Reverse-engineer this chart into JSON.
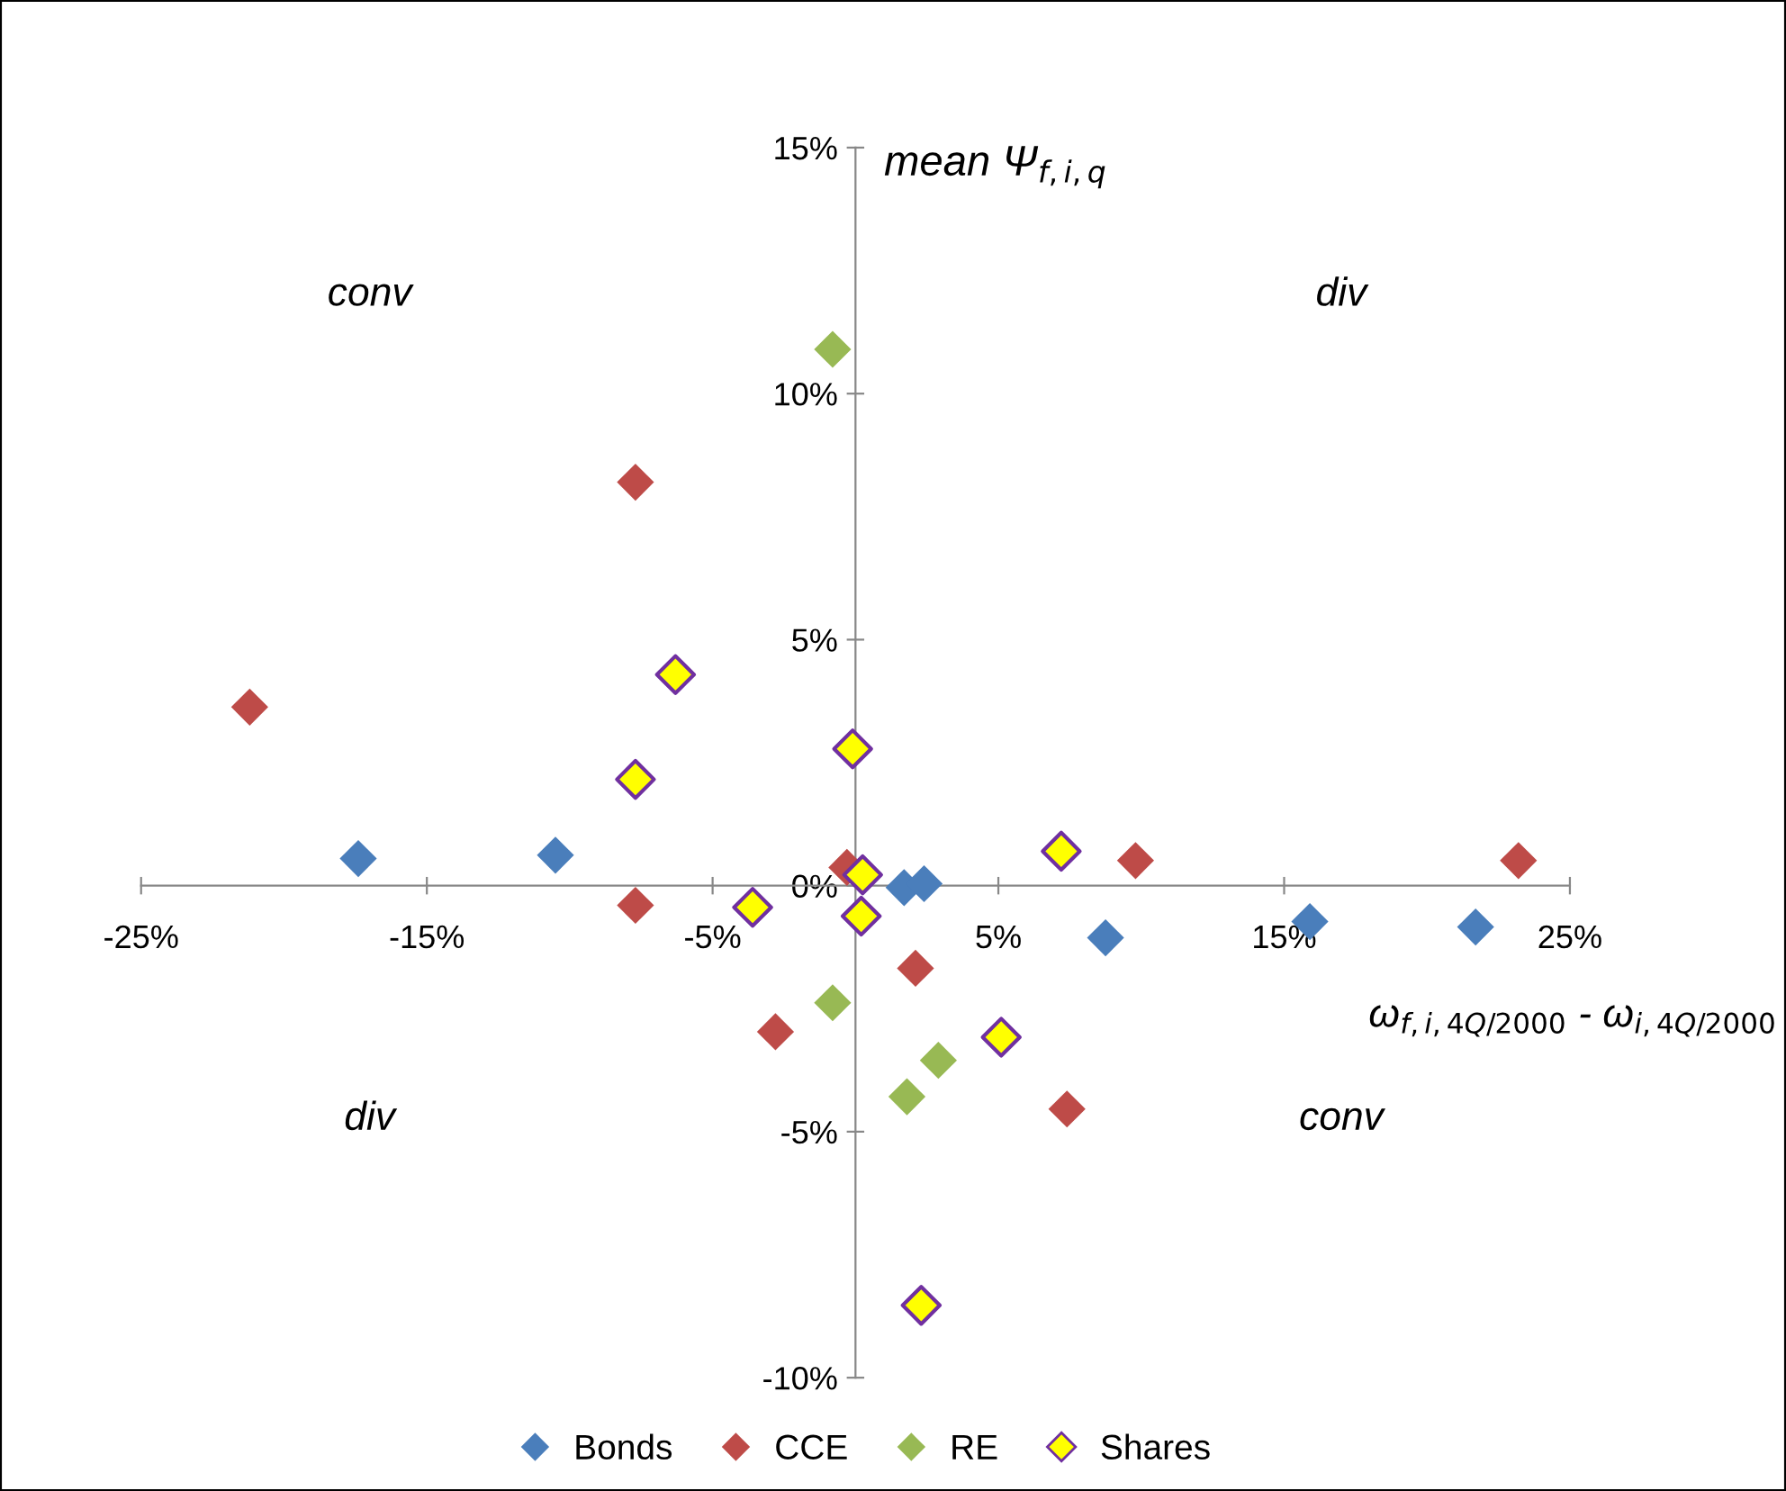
{
  "chart_data": {
    "type": "scatter",
    "xlabel": "ω$_{f,i,4Q/2000}$ - ω$_{i,4Q/2000}$",
    "ylabel": "mean Ψ$_{f,i,q}$",
    "annotations": [
      "conv",
      "div",
      "div",
      "conv"
    ],
    "series": [
      {
        "name": "Bonds",
        "color": "#4a7ebb",
        "x": [
          -17.4,
          -10.5,
          0.2,
          1.7,
          2.4,
          8.75,
          15.9,
          21.7
        ],
        "values": [
          0.55,
          0.62,
          null,
          -0.04,
          0.04,
          -1.06,
          -0.73,
          -0.84
        ]
      },
      {
        "name": "CCE",
        "color": "#be4b48",
        "x": [
          -21.2,
          -7.7,
          -7.7,
          -2.8,
          -0.3,
          2.1,
          7.4,
          9.8,
          23.2
        ],
        "values": [
          3.63,
          8.2,
          -0.4,
          -2.97,
          0.37,
          -1.68,
          -4.54,
          0.51,
          0.51
        ]
      },
      {
        "name": "RE",
        "color": "#98b954",
        "x": [
          -0.8,
          -0.8,
          1.8,
          2.9
        ],
        "values": [
          10.9,
          -2.38,
          -4.29,
          -3.55
        ]
      },
      {
        "name": "Shares",
        "color": "#ffff00",
        "x": [
          -6.3,
          -7.7,
          -0.1,
          0.25,
          -3.6,
          0.2,
          7.2,
          5.1,
          2.3
        ],
        "values": [
          4.29,
          2.16,
          2.78,
          0.22,
          -0.44,
          -0.62,
          0.7,
          -3.08,
          -8.53
        ]
      }
    ],
    "marker": "diamond",
    "legend": "bottom",
    "grid": false,
    "xlim": [
      -25,
      25
    ],
    "xticks": [
      {
        "value": -25,
        "label": "-25%"
      },
      {
        "value": -15,
        "label": "-15%"
      },
      {
        "value": -5,
        "label": "-5%"
      },
      {
        "value": 5,
        "label": "5%"
      },
      {
        "value": 15,
        "label": "15%"
      },
      {
        "value": 25,
        "label": "25%"
      }
    ],
    "ylim": [
      -10,
      15
    ],
    "yticks": [
      {
        "value": -10,
        "label": "-10%"
      },
      {
        "value": -5,
        "label": "-5%"
      },
      {
        "value": 0,
        "label": "0%"
      },
      {
        "value": 5,
        "label": "5%"
      },
      {
        "value": 10,
        "label": "10%"
      },
      {
        "value": 15,
        "label": "15%"
      }
    ]
  }
}
